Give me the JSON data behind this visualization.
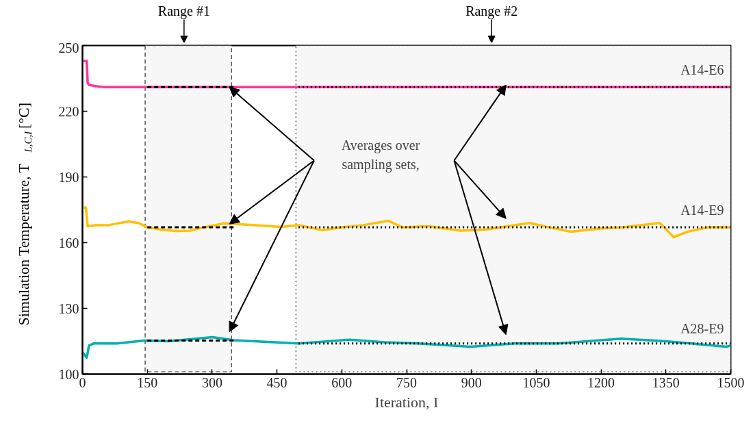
{
  "chart_data": {
    "type": "line",
    "xlabel": "Iteration, I",
    "ylabel": "Simulation Temperature, T$_{L,C,I}$ [°C]",
    "xlim": [
      0,
      1500
    ],
    "ylim": [
      100,
      250
    ],
    "xticks": [
      0,
      150,
      300,
      450,
      600,
      750,
      900,
      1050,
      1200,
      1350,
      1500
    ],
    "yticks": [
      100,
      130,
      160,
      190,
      220,
      250
    ],
    "grid": false,
    "line_style": "solid",
    "series": [
      {
        "name": "A14-E6",
        "color": "#ff3399",
        "x": [
          0,
          10,
          12,
          15,
          30,
          50,
          100,
          1500
        ],
        "values": [
          243,
          243,
          233,
          232,
          231.5,
          231,
          231,
          231
        ]
      },
      {
        "name": "A14-E9",
        "color": "#ffc000",
        "x": [
          0,
          8,
          12,
          30,
          60,
          106,
          130,
          150,
          180,
          217,
          250,
          280,
          328,
          400,
          460,
          500,
          555,
          600,
          650,
          708,
          740,
          800,
          876,
          935,
          1000,
          1035,
          1080,
          1130,
          1200,
          1250,
          1336,
          1368,
          1400,
          1447,
          1500
        ],
        "values": [
          176,
          176,
          167.5,
          168,
          168,
          169.7,
          169,
          167,
          166,
          165.3,
          165.5,
          167,
          168.8,
          168,
          167.2,
          168,
          165.7,
          167,
          168,
          170,
          167,
          167.5,
          165.5,
          166,
          168,
          169,
          167,
          165,
          166.5,
          167,
          169,
          162.5,
          165,
          167,
          167
        ]
      },
      {
        "name": "A28-E9",
        "color": "#00b0b0",
        "x": [
          0,
          10,
          15,
          26,
          80,
          143,
          200,
          301,
          350,
          460,
          500,
          618,
          700,
          777,
          898,
          1000,
          1100,
          1247,
          1350,
          1490,
          1500
        ],
        "values": [
          110,
          107.5,
          113,
          114,
          114,
          115.3,
          115,
          116.9,
          115.5,
          114.4,
          114,
          115.7,
          114.5,
          114,
          112.5,
          114,
          114,
          116.2,
          115,
          112.5,
          113
        ]
      },
      {
        "color": "#000000",
        "line_style": "dashed",
        "x": [
          150,
          350
        ],
        "values": [
          231,
          231
        ]
      },
      {
        "color": "#000000",
        "line_style": "dashed",
        "x": [
          150,
          350
        ],
        "values": [
          167,
          167
        ]
      },
      {
        "color": "#000000",
        "line_style": "dashed",
        "x": [
          150,
          350
        ],
        "values": [
          115.3,
          115.3
        ]
      },
      {
        "color": "#000000",
        "line_style": "dotted",
        "x": [
          500,
          1500
        ],
        "values": [
          231,
          231
        ]
      },
      {
        "color": "#000000",
        "line_style": "dotted",
        "x": [
          500,
          1500
        ],
        "values": [
          167,
          167
        ]
      },
      {
        "color": "#000000",
        "line_style": "dotted",
        "x": [
          500,
          1500
        ],
        "values": [
          114,
          114
        ]
      }
    ],
    "bands": [
      {
        "axis": "x",
        "from": 145,
        "to": 345,
        "label": "Range #1",
        "color": "#f7f7f7"
      },
      {
        "axis": "x",
        "from": 494,
        "to": 1500,
        "label": "Range #2",
        "color": "#f7f7f7"
      }
    ],
    "annotations": [
      "Averages over sampling sets,"
    ]
  }
}
